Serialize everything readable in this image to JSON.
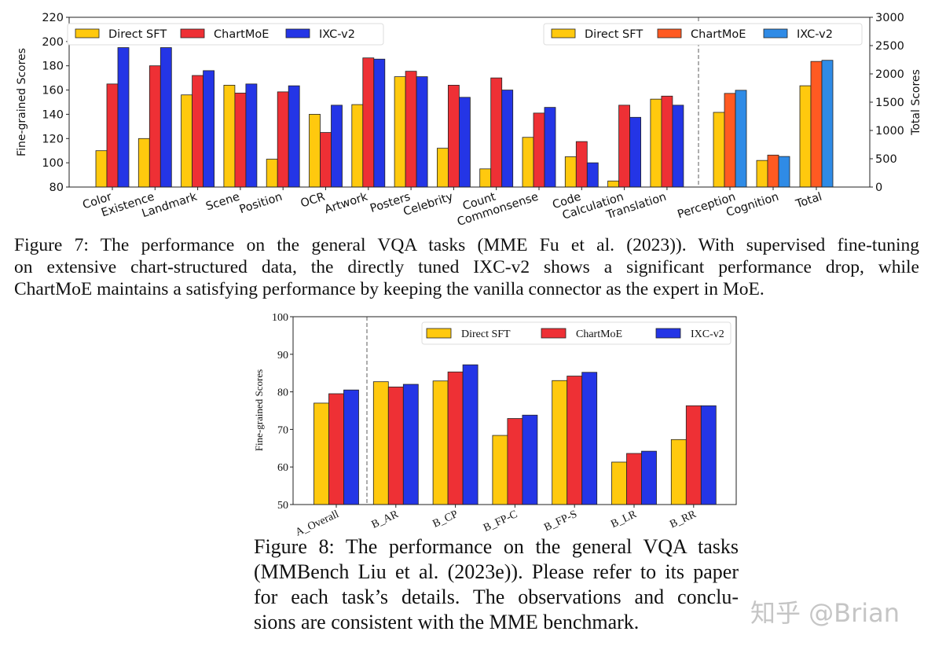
{
  "chart_data": [
    {
      "type": "bar",
      "title": "",
      "ylabel": "Fine-grained Scores",
      "y2label": "Total Scores",
      "ylim": [
        80,
        220
      ],
      "yticks": [
        80,
        100,
        120,
        140,
        160,
        180,
        200,
        220
      ],
      "y2lim": [
        0,
        3000
      ],
      "y2ticks": [
        0,
        500,
        1000,
        1500,
        2000,
        2500,
        3000
      ],
      "grid": false,
      "legend_placement": "top-left",
      "legend2_placement": "top-right",
      "categories": [
        "Color",
        "Existence",
        "Landmark",
        "Scene",
        "Position",
        "OCR",
        "Artwork",
        "Posters",
        "Celebrity",
        "Count",
        "Commonsense",
        "Code",
        "Calculation",
        "Translation"
      ],
      "series": [
        {
          "name": "Direct SFT",
          "color": "#FFC90E",
          "values": [
            110,
            120,
            156,
            164,
            103,
            140,
            148,
            171,
            112,
            95,
            121,
            105,
            85,
            152.5
          ]
        },
        {
          "name": "ChartMoE",
          "color": "#EE3035",
          "values": [
            165,
            180,
            172,
            157.5,
            158.5,
            125,
            186.5,
            175.5,
            164,
            170,
            141,
            117.5,
            147.5,
            155
          ]
        },
        {
          "name": "IXC-v2",
          "color": "#2435E6",
          "values": [
            195,
            195,
            176,
            165,
            163.5,
            147.5,
            185.5,
            171,
            154,
            160,
            145.7,
            100,
            137.5,
            147.5
          ]
        }
      ],
      "total_categories": [
        "Perception",
        "Cognition",
        "Total"
      ],
      "total_series": [
        {
          "name": "Direct SFT",
          "color": "#FFC90E",
          "values": [
            1320,
            470,
            1790
          ]
        },
        {
          "name": "ChartMoE",
          "color": "#FF5A22",
          "values": [
            1655,
            565,
            2220
          ]
        },
        {
          "name": "IXC-v2",
          "color": "#2F8BE6",
          "values": [
            1710,
            540,
            2240
          ]
        }
      ]
    },
    {
      "type": "bar",
      "title": "",
      "ylabel": "Fine-grained Scores",
      "ylim": [
        50,
        100
      ],
      "yticks": [
        50,
        60,
        70,
        80,
        90,
        100
      ],
      "grid": false,
      "legend_placement": "top-right",
      "categories": [
        "A_Overall",
        "B_AR",
        "B_CP",
        "B_FP-C",
        "B_FP-S",
        "B_LR",
        "B_RR"
      ],
      "series": [
        {
          "name": "Direct SFT",
          "color": "#FFC90E",
          "values": [
            77,
            82.7,
            82.9,
            68.4,
            83,
            61.3,
            67.3
          ]
        },
        {
          "name": "ChartMoE",
          "color": "#EE3035",
          "values": [
            79.5,
            81.3,
            85.3,
            72.9,
            84.2,
            63.6,
            76.3
          ]
        },
        {
          "name": "IXC-v2",
          "color": "#2435E6",
          "values": [
            80.5,
            82,
            87.2,
            73.8,
            85.2,
            64.2,
            76.3
          ]
        }
      ]
    }
  ],
  "captions": {
    "figure7": [
      "Figure 7: The performance on the general VQA tasks (MME Fu et al. (2023)). With supervised fine-tuning",
      "on extensive chart-structured data, the directly tuned IXC-v2 shows a significant performance drop, while",
      "ChartMoE maintains a satisfying performance by keeping the vanilla connector as the expert in MoE."
    ],
    "figure8": [
      "Figure 8: The performance on the general VQA tasks",
      "(MMBench Liu et al. (2023e)). Please refer to its paper",
      "for each task’s details. The observations and conclu-",
      "sions are consistent with the MME benchmark."
    ]
  },
  "watermark": "知乎 @Brian"
}
